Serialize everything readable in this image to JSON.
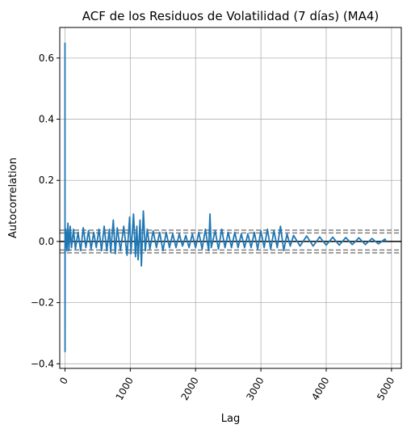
{
  "chart_data": {
    "type": "line",
    "title": "ACF de los Residuos de Volatilidad (7 días) (MA4)",
    "xlabel": "Lag",
    "ylabel": "Autocorrelation",
    "xlim": [
      -80,
      5150
    ],
    "ylim": [
      -0.415,
      0.7
    ],
    "x_ticks": [
      0,
      1000,
      2000,
      3000,
      4000,
      5000
    ],
    "x_tick_labels": [
      "0",
      "1000",
      "2000",
      "3000",
      "4000",
      "5000"
    ],
    "y_ticks": [
      -0.4,
      -0.2,
      0.0,
      0.2,
      0.4,
      0.6
    ],
    "y_tick_labels": [
      "−0.4",
      "−0.2",
      "0.0",
      "0.2",
      "0.4",
      "0.6"
    ],
    "grid": true,
    "x_tick_rotation": "60 degrees",
    "series": [
      {
        "color": "#1f77b4",
        "points": [
          [
            0,
            0.65
          ],
          [
            1,
            -0.36
          ],
          [
            2,
            0.05
          ],
          [
            3,
            -0.04
          ],
          [
            5,
            0.02
          ],
          [
            8,
            -0.02
          ],
          [
            15,
            0.04
          ],
          [
            30,
            -0.03
          ],
          [
            45,
            0.06
          ],
          [
            60,
            -0.03
          ],
          [
            80,
            0.05
          ],
          [
            100,
            -0.02
          ],
          [
            130,
            0.04
          ],
          [
            160,
            -0.025
          ],
          [
            200,
            0.03
          ],
          [
            240,
            -0.03
          ],
          [
            280,
            0.045
          ],
          [
            320,
            -0.02
          ],
          [
            360,
            0.035
          ],
          [
            400,
            -0.025
          ],
          [
            440,
            0.03
          ],
          [
            480,
            -0.02
          ],
          [
            520,
            0.04
          ],
          [
            560,
            -0.03
          ],
          [
            600,
            0.05
          ],
          [
            640,
            -0.03
          ],
          [
            680,
            0.04
          ],
          [
            700,
            -0.035
          ],
          [
            740,
            0.07
          ],
          [
            770,
            -0.04
          ],
          [
            800,
            0.045
          ],
          [
            850,
            -0.03
          ],
          [
            900,
            0.05
          ],
          [
            950,
            -0.045
          ],
          [
            990,
            0.08
          ],
          [
            1010,
            -0.04
          ],
          [
            1050,
            0.09
          ],
          [
            1080,
            -0.05
          ],
          [
            1100,
            0.05
          ],
          [
            1120,
            -0.06
          ],
          [
            1150,
            0.07
          ],
          [
            1170,
            -0.08
          ],
          [
            1200,
            0.1
          ],
          [
            1230,
            -0.03
          ],
          [
            1260,
            0.04
          ],
          [
            1300,
            -0.025
          ],
          [
            1350,
            0.035
          ],
          [
            1400,
            -0.02
          ],
          [
            1450,
            0.03
          ],
          [
            1500,
            -0.03
          ],
          [
            1550,
            0.03
          ],
          [
            1600,
            -0.02
          ],
          [
            1650,
            0.025
          ],
          [
            1700,
            -0.02
          ],
          [
            1750,
            0.025
          ],
          [
            1800,
            -0.015
          ],
          [
            1850,
            0.02
          ],
          [
            1900,
            -0.02
          ],
          [
            1950,
            0.025
          ],
          [
            2000,
            -0.02
          ],
          [
            2050,
            0.03
          ],
          [
            2100,
            -0.025
          ],
          [
            2150,
            0.04
          ],
          [
            2200,
            -0.03
          ],
          [
            2220,
            0.09
          ],
          [
            2240,
            -0.02
          ],
          [
            2300,
            0.035
          ],
          [
            2350,
            -0.025
          ],
          [
            2400,
            0.04
          ],
          [
            2450,
            -0.02
          ],
          [
            2500,
            0.03
          ],
          [
            2550,
            -0.02
          ],
          [
            2600,
            0.03
          ],
          [
            2650,
            -0.02
          ],
          [
            2700,
            0.025
          ],
          [
            2750,
            -0.02
          ],
          [
            2800,
            0.025
          ],
          [
            2850,
            -0.02
          ],
          [
            2900,
            0.03
          ],
          [
            2950,
            -0.025
          ],
          [
            3000,
            0.035
          ],
          [
            3050,
            -0.02
          ],
          [
            3100,
            0.04
          ],
          [
            3150,
            -0.025
          ],
          [
            3200,
            0.035
          ],
          [
            3250,
            -0.02
          ],
          [
            3300,
            0.05
          ],
          [
            3350,
            -0.03
          ],
          [
            3400,
            0.025
          ],
          [
            3450,
            -0.015
          ],
          [
            3500,
            0.02
          ],
          [
            3600,
            -0.015
          ],
          [
            3700,
            0.018
          ],
          [
            3800,
            -0.015
          ],
          [
            3900,
            0.015
          ],
          [
            4000,
            -0.012
          ],
          [
            4100,
            0.014
          ],
          [
            4200,
            -0.012
          ],
          [
            4300,
            0.013
          ],
          [
            4400,
            -0.01
          ],
          [
            4500,
            0.012
          ],
          [
            4600,
            -0.01
          ],
          [
            4700,
            0.01
          ],
          [
            4800,
            -0.008
          ],
          [
            4900,
            0.008
          ],
          [
            4920,
            0.0
          ]
        ]
      }
    ],
    "reference_lines": [
      {
        "y": 0.0,
        "color": "#000000",
        "style": "solid"
      },
      {
        "y": 0.0279,
        "color": "#808080",
        "style": "dashed"
      },
      {
        "y": 0.0371,
        "color": "#808080",
        "style": "dashed"
      },
      {
        "y": -0.0279,
        "color": "#808080",
        "style": "dashed"
      },
      {
        "y": -0.0371,
        "color": "#808080",
        "style": "dashed"
      }
    ]
  }
}
